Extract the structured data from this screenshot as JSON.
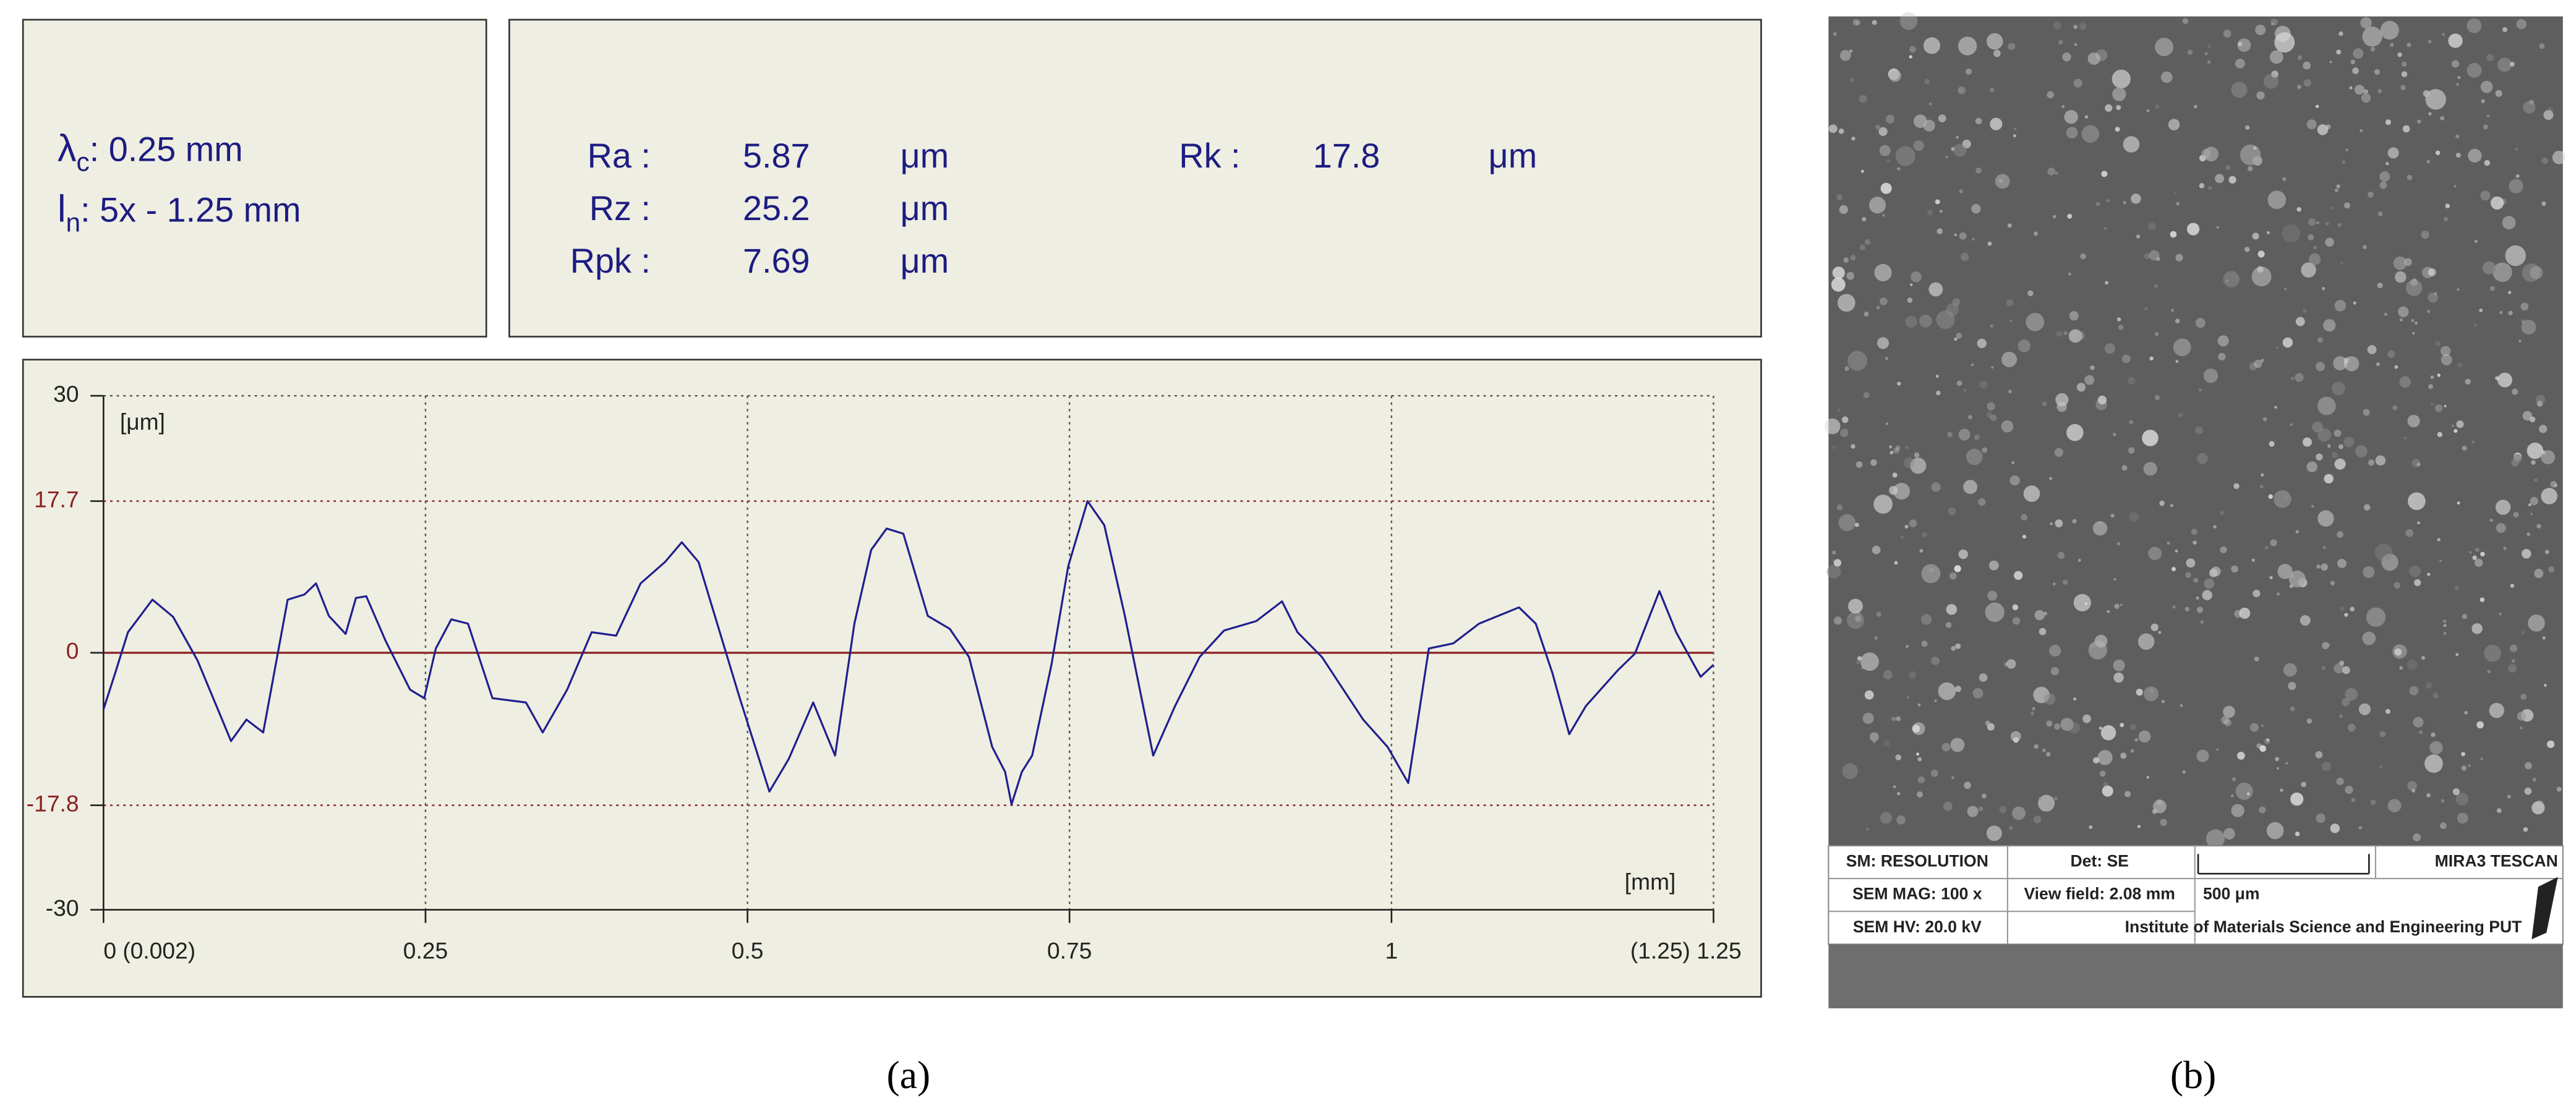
{
  "settings": {
    "cutoff": {
      "symbol": "λ",
      "subscript": "c",
      "text": ": 0.25 mm"
    },
    "length": {
      "symbol": "l",
      "subscript": "n",
      "text": ": 5x - 1.25 mm"
    }
  },
  "roughness": [
    {
      "label": "Ra :",
      "value": 5.87,
      "unit": "μm"
    },
    {
      "label": "Rz :",
      "value": 25.2,
      "unit": "μm"
    },
    {
      "label": "Rpk :",
      "value": 7.69,
      "unit": "μm"
    },
    {
      "label": "Rk :",
      "value": 17.8,
      "unit": "μm"
    }
  ],
  "chart_data": {
    "type": "line",
    "y_label": "[μm]",
    "x_label": "[mm]",
    "color": "#1f1f8f",
    "x": [
      0,
      0.009,
      0.019,
      0.038,
      0.054,
      0.073,
      0.099,
      0.111,
      0.124,
      0.143,
      0.156,
      0.165,
      0.175,
      0.188,
      0.196,
      0.204,
      0.219,
      0.238,
      0.249,
      0.258,
      0.27,
      0.283,
      0.302,
      0.328,
      0.341,
      0.36,
      0.379,
      0.398,
      0.417,
      0.436,
      0.449,
      0.462,
      0.494,
      0.517,
      0.532,
      0.551,
      0.568,
      0.583,
      0.596,
      0.608,
      0.621,
      0.64,
      0.657,
      0.672,
      0.69,
      0.7,
      0.705,
      0.713,
      0.721,
      0.736,
      0.749,
      0.764,
      0.777,
      0.793,
      0.815,
      0.832,
      0.851,
      0.87,
      0.895,
      0.915,
      0.927,
      0.946,
      0.978,
      0.997,
      1.013,
      1.029,
      1.048,
      1.068,
      1.099,
      1.112,
      1.125,
      1.138,
      1.151,
      1.176,
      1.189,
      1.208,
      1.221,
      1.24,
      1.25
    ],
    "values": [
      -6.6,
      -2.4,
      2.4,
      6.2,
      4.2,
      -0.9,
      -10.3,
      -7.8,
      -9.3,
      6.2,
      6.8,
      8.1,
      4.3,
      2.2,
      6.4,
      6.6,
      1.4,
      -4.3,
      -5.3,
      0.5,
      3.9,
      3.4,
      -5.3,
      -5.8,
      -9.3,
      -4.3,
      2.4,
      2.0,
      8.1,
      10.6,
      12.9,
      10.6,
      -5.3,
      -16.2,
      -12.4,
      -5.8,
      -12.0,
      3.4,
      12.0,
      14.5,
      13.9,
      4.3,
      2.8,
      -0.5,
      -11.0,
      -13.9,
      -17.7,
      -13.9,
      -12.0,
      -1.4,
      10.1,
      17.7,
      14.9,
      4.3,
      -12.0,
      -6.2,
      -0.5,
      2.6,
      3.7,
      6.0,
      2.4,
      -0.5,
      -7.8,
      -11.0,
      -15.2,
      0.5,
      1.1,
      3.4,
      5.3,
      3.4,
      -2.4,
      -9.5,
      -6.2,
      -2.0,
      -0.1,
      7.2,
      2.4,
      -2.8,
      -1.4
    ],
    "xlim": [
      0,
      1.25
    ],
    "ylim": [
      -30,
      30
    ],
    "xticks": [
      {
        "value": 0,
        "label": "0 (0.002)"
      },
      0.25,
      0.5,
      0.75,
      1,
      {
        "value": 1.25,
        "label": "(1.25) 1.25"
      }
    ],
    "yticks": [
      -30,
      -17.8,
      0,
      17.7,
      30
    ],
    "grid": true,
    "reference_color": "#8b1e1e"
  },
  "sem_info": {
    "mode": "SM: RESOLUTION",
    "detector": "Det: SE",
    "brand": "MIRA3 TESCAN",
    "magnification": "SEM MAG: 100 x",
    "view_field": "View field: 2.08 mm",
    "scale": "500 μm",
    "voltage": "SEM HV: 20.0 kV",
    "institute": "Institute of Materials Science and Engineering  PUT"
  },
  "captions": {
    "a": "(a)",
    "b": "(b)"
  }
}
